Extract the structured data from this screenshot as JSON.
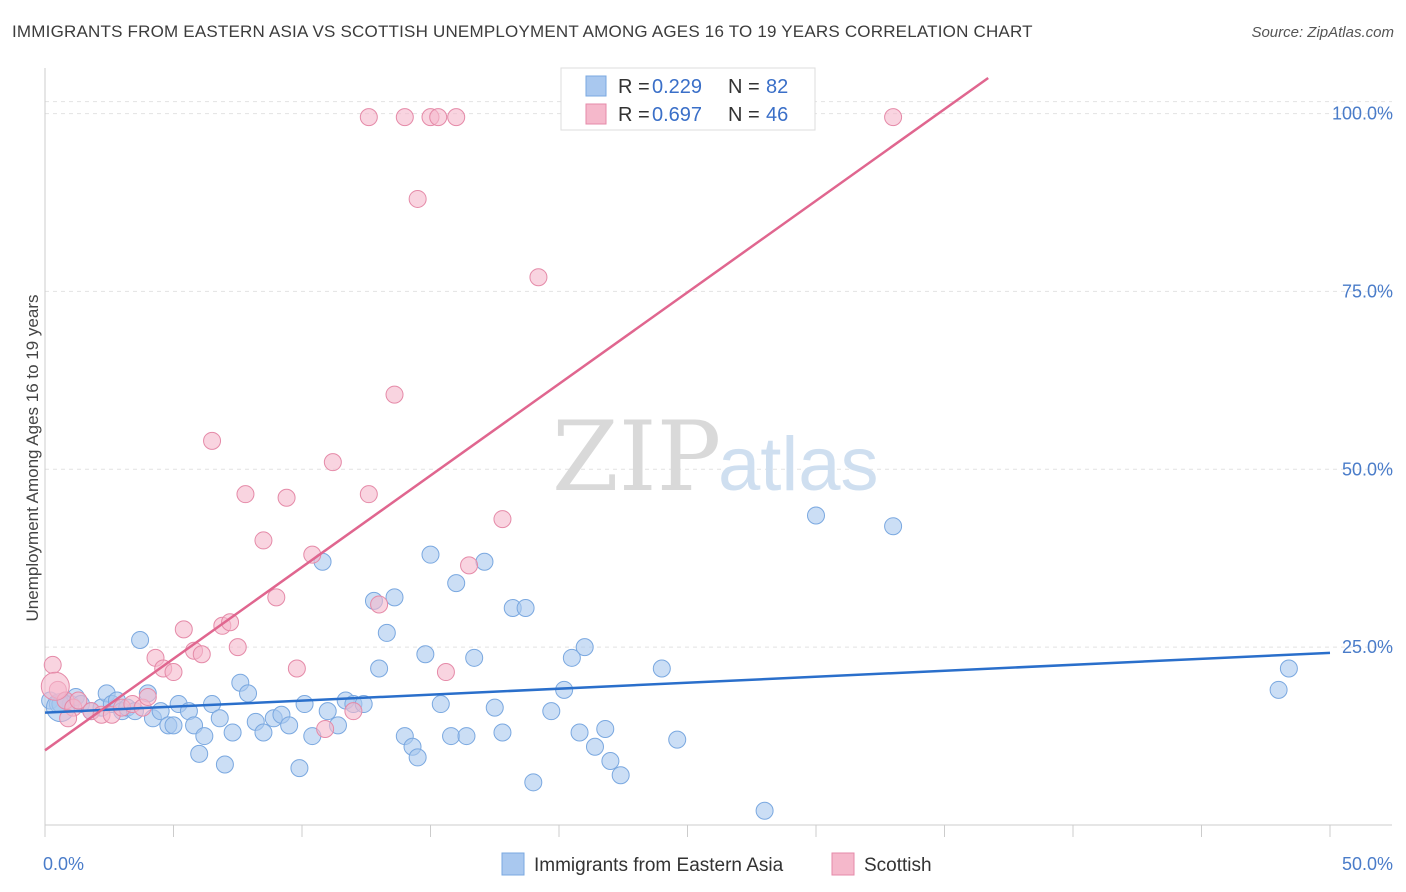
{
  "title": "IMMIGRANTS FROM EASTERN ASIA VS SCOTTISH UNEMPLOYMENT AMONG AGES 16 TO 19 YEARS CORRELATION CHART",
  "source": "Source: ZipAtlas.com",
  "watermark": {
    "zip": "ZIP",
    "atlas": "atlas"
  },
  "colors": {
    "blue": "#a9c8ef",
    "blue_line": "#2a6fcb",
    "pink": "#f5b8cb",
    "pink_line": "#e0668f"
  },
  "legend": {
    "r_label": "R =",
    "n_label": "N =",
    "rows": [
      {
        "r": "0.229",
        "n": "82"
      },
      {
        "r": "0.697",
        "n": "46"
      }
    ]
  },
  "chart_data": {
    "type": "scatter",
    "xlabel": "",
    "ylabel": "Unemployment Among Ages 16 to 19 years",
    "xlim": [
      0,
      50
    ],
    "ylim": [
      0,
      105
    ],
    "x_tick_labels": [
      "0.0%",
      "50.0%"
    ],
    "y_ticks": [
      25,
      50,
      75,
      100
    ],
    "y_tick_labels": [
      "25.0%",
      "50.0%",
      "75.0%",
      "100.0%"
    ],
    "grid": true,
    "legend_position": "top-center",
    "series": [
      {
        "name": "Immigrants from Eastern Asia",
        "color": "#a9c8ef",
        "trend": {
          "x0": 0,
          "y0": 15.8,
          "x1": 50,
          "y1": 24.2
        },
        "points": [
          [
            0.2,
            17.5
          ],
          [
            0.5,
            17.0
          ],
          [
            0.8,
            17.5
          ],
          [
            1.0,
            17.0
          ],
          [
            1.2,
            18.0
          ],
          [
            1.4,
            17.0
          ],
          [
            1.8,
            16.0
          ],
          [
            2.2,
            16.5
          ],
          [
            2.4,
            18.5
          ],
          [
            2.6,
            17.0
          ],
          [
            2.8,
            17.5
          ],
          [
            3.0,
            16.0
          ],
          [
            3.2,
            16.5
          ],
          [
            3.5,
            16.0
          ],
          [
            3.7,
            26.0
          ],
          [
            4.0,
            18.5
          ],
          [
            4.2,
            15.0
          ],
          [
            4.5,
            16.0
          ],
          [
            4.8,
            14.0
          ],
          [
            5.0,
            14.0
          ],
          [
            5.2,
            17.0
          ],
          [
            5.6,
            16.0
          ],
          [
            5.8,
            14.0
          ],
          [
            6.0,
            10.0
          ],
          [
            6.2,
            12.5
          ],
          [
            6.5,
            17.0
          ],
          [
            6.8,
            15.0
          ],
          [
            7.0,
            8.5
          ],
          [
            7.3,
            13.0
          ],
          [
            7.6,
            20.0
          ],
          [
            7.9,
            18.5
          ],
          [
            8.2,
            14.5
          ],
          [
            8.5,
            13.0
          ],
          [
            8.9,
            15.0
          ],
          [
            9.2,
            15.5
          ],
          [
            9.5,
            14.0
          ],
          [
            9.9,
            8.0
          ],
          [
            10.1,
            17.0
          ],
          [
            10.4,
            12.5
          ],
          [
            10.8,
            37.0
          ],
          [
            11.0,
            16.0
          ],
          [
            11.4,
            14.0
          ],
          [
            11.7,
            17.5
          ],
          [
            12.0,
            17.0
          ],
          [
            12.4,
            17.0
          ],
          [
            12.8,
            31.5
          ],
          [
            13.0,
            22.0
          ],
          [
            13.3,
            27.0
          ],
          [
            13.6,
            32.0
          ],
          [
            14.0,
            12.5
          ],
          [
            14.3,
            11.0
          ],
          [
            14.5,
            9.5
          ],
          [
            14.8,
            24.0
          ],
          [
            15.0,
            38.0
          ],
          [
            15.4,
            17.0
          ],
          [
            15.8,
            12.5
          ],
          [
            16.0,
            34.0
          ],
          [
            16.4,
            12.5
          ],
          [
            16.7,
            23.5
          ],
          [
            17.1,
            37.0
          ],
          [
            17.5,
            16.5
          ],
          [
            17.8,
            13.0
          ],
          [
            18.2,
            30.5
          ],
          [
            18.7,
            30.5
          ],
          [
            19.0,
            6.0
          ],
          [
            19.7,
            16.0
          ],
          [
            20.2,
            19.0
          ],
          [
            20.5,
            23.5
          ],
          [
            20.8,
            13.0
          ],
          [
            21.0,
            25.0
          ],
          [
            21.4,
            11.0
          ],
          [
            21.8,
            13.5
          ],
          [
            22.0,
            9.0
          ],
          [
            22.4,
            7.0
          ],
          [
            24.0,
            22.0
          ],
          [
            24.6,
            12.0
          ],
          [
            28.0,
            2.0
          ],
          [
            30.0,
            43.5
          ],
          [
            33.0,
            42.0
          ],
          [
            48.0,
            19.0
          ],
          [
            48.4,
            22.0
          ],
          [
            0.6,
            17.0
          ]
        ]
      },
      {
        "name": "Scottish",
        "color": "#f5b8cb",
        "trend": {
          "x0": 0,
          "y0": 10.5,
          "x1": 36.7,
          "y1": 105
        },
        "points": [
          [
            0.3,
            22.5
          ],
          [
            0.5,
            19.0
          ],
          [
            0.8,
            17.5
          ],
          [
            1.1,
            16.5
          ],
          [
            1.3,
            17.5
          ],
          [
            1.8,
            16.0
          ],
          [
            2.2,
            15.5
          ],
          [
            2.6,
            15.5
          ],
          [
            3.0,
            16.5
          ],
          [
            3.4,
            17.0
          ],
          [
            3.8,
            16.5
          ],
          [
            4.0,
            18.0
          ],
          [
            4.3,
            23.5
          ],
          [
            4.6,
            22.0
          ],
          [
            5.0,
            21.5
          ],
          [
            5.4,
            27.5
          ],
          [
            5.8,
            24.5
          ],
          [
            6.1,
            24.0
          ],
          [
            6.5,
            54.0
          ],
          [
            6.9,
            28.0
          ],
          [
            7.2,
            28.5
          ],
          [
            7.5,
            25.0
          ],
          [
            7.8,
            46.5
          ],
          [
            8.5,
            40.0
          ],
          [
            9.0,
            32.0
          ],
          [
            9.4,
            46.0
          ],
          [
            9.8,
            22.0
          ],
          [
            10.4,
            38.0
          ],
          [
            10.9,
            13.5
          ],
          [
            11.2,
            51.0
          ],
          [
            12.0,
            16.0
          ],
          [
            12.6,
            46.5
          ],
          [
            13.0,
            31.0
          ],
          [
            13.6,
            60.5
          ],
          [
            14.0,
            99.5
          ],
          [
            14.5,
            88.0
          ],
          [
            15.0,
            99.5
          ],
          [
            15.3,
            99.5
          ],
          [
            15.6,
            21.5
          ],
          [
            16.5,
            36.5
          ],
          [
            17.8,
            43.0
          ],
          [
            19.2,
            77.0
          ],
          [
            0.9,
            15.0
          ],
          [
            12.6,
            99.5
          ],
          [
            16.0,
            99.5
          ],
          [
            33.0,
            99.5
          ]
        ]
      }
    ]
  }
}
